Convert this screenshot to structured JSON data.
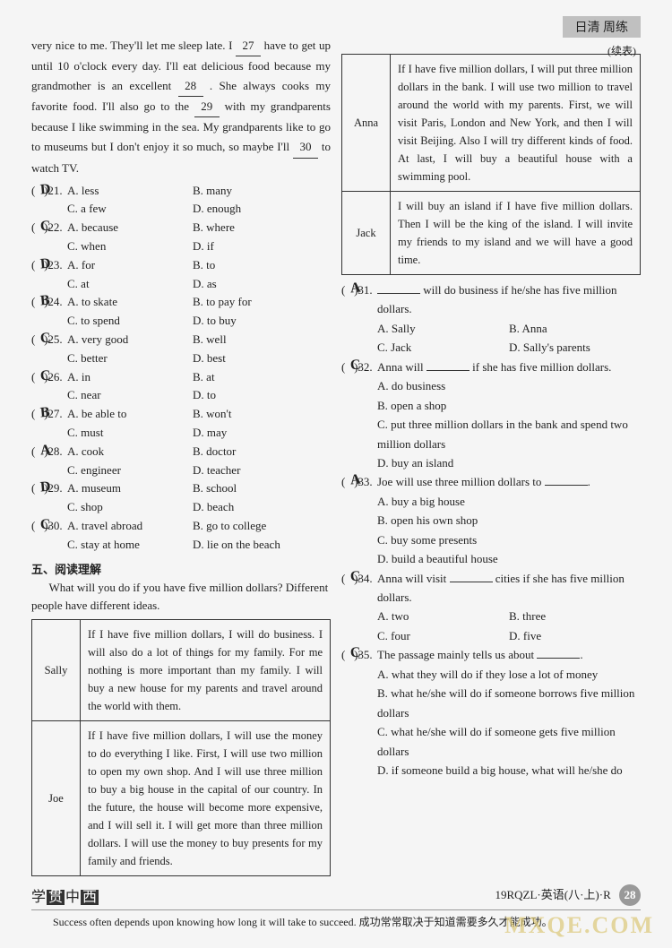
{
  "header": {
    "title": "日清 周练",
    "cont": "(续表)"
  },
  "passage": {
    "pre27": "very nice to me. They'll let me sleep late. I ",
    "b27": "27",
    "post27": " have to get up until 10 o'clock every day. I'll eat delicious food because my grandmother is an excellent ",
    "b28": "28",
    "post28": " . She always cooks my favorite food. I'll also go to the ",
    "b29": "29",
    "post29": " with my grandparents because I like swimming in the sea. My grandparents like to go to museums but I don't enjoy it so much, so maybe I'll ",
    "b30": "30",
    "post30": " to watch TV."
  },
  "cloze": [
    {
      "n": "21",
      "hw": "D",
      "a": "A. less",
      "b": "B. many",
      "c": "C. a few",
      "d": "D. enough"
    },
    {
      "n": "22",
      "hw": "C",
      "a": "A. because",
      "b": "B. where",
      "c": "C. when",
      "d": "D. if"
    },
    {
      "n": "23",
      "hw": "D",
      "a": "A. for",
      "b": "B. to",
      "c": "C. at",
      "d": "D. as"
    },
    {
      "n": "24",
      "hw": "B",
      "a": "A. to skate",
      "b": "B. to pay for",
      "c": "C. to spend",
      "d": "D. to buy"
    },
    {
      "n": "25",
      "hw": "C",
      "a": "A. very good",
      "b": "B. well",
      "c": "C. better",
      "d": "D. best"
    },
    {
      "n": "26",
      "hw": "C",
      "a": "A. in",
      "b": "B. at",
      "c": "C. near",
      "d": "D. to"
    },
    {
      "n": "27",
      "hw": "B",
      "a": "A. be able to",
      "b": "B. won't",
      "c": "C. must",
      "d": "D. may"
    },
    {
      "n": "28",
      "hw": "A",
      "a": "A. cook",
      "b": "B. doctor",
      "c": "C. engineer",
      "d": "D. teacher"
    },
    {
      "n": "29",
      "hw": "D",
      "a": "A. museum",
      "b": "B. school",
      "c": "C. shop",
      "d": "D. beach"
    },
    {
      "n": "30",
      "hw": "C",
      "a": "A. travel abroad",
      "b": "B. go to college",
      "c": "C. stay at home",
      "d": "D. lie on the beach"
    }
  ],
  "section5": {
    "title": "五、阅读理解",
    "intro": "What will you do if you have five million dollars? Different people have different ideas."
  },
  "table1": [
    {
      "name": "Sally",
      "text": "If I have five million dollars, I will do business. I will also do a lot of things for my family. For me nothing is more important than my family. I will buy a new house for my parents and travel around the world with them."
    },
    {
      "name": "Joe",
      "text": "If I have five million dollars, I will use the money to do everything I like. First, I will use two million to open my own shop. And I will use three million to buy a big house in the capital of our country. In the future, the house will become more expensive, and I will sell it. I will get more than three million dollars. I will use the money to buy presents for my family and friends."
    }
  ],
  "table2": [
    {
      "name": "Anna",
      "text": "If I have five million dollars, I will put three million dollars in the bank. I will use two million to travel around the world with my parents. First, we will visit Paris, London and New York, and then I will visit Beijing. Also I will try different kinds of food. At last, I will buy a beautiful house with a swimming pool."
    },
    {
      "name": "Jack",
      "text": "I will buy an island if I have five million dollars. Then I will be the king of the island. I will invite my friends to my island and we will have a good time."
    }
  ],
  "questions": [
    {
      "n": "31",
      "hw": "A",
      "stem_a": "",
      "blank": true,
      "stem_b": " will do business if he/she has five million dollars.",
      "opts": [
        [
          "A. Sally",
          "B. Anna"
        ],
        [
          "C. Jack",
          "D. Sally's parents"
        ]
      ]
    },
    {
      "n": "32",
      "hw": "C",
      "stem_a": "Anna will ",
      "blank": true,
      "stem_b": " if she has five million dollars.",
      "long_opts": [
        "A. do business",
        "B. open a shop",
        "C. put three million dollars in the bank and spend two million dollars",
        "D. buy an island"
      ]
    },
    {
      "n": "33",
      "hw": "A",
      "stem_a": "Joe will use three million dollars to ",
      "blank": true,
      "stem_b": ".",
      "long_opts": [
        "A. buy a big house",
        "B. open his own shop",
        "C. buy some presents",
        "D. build a beautiful house"
      ]
    },
    {
      "n": "34",
      "hw": "C",
      "stem_a": "Anna will visit ",
      "blank": true,
      "stem_b": " cities if she has five million dollars.",
      "opts": [
        [
          "A. two",
          "B. three"
        ],
        [
          "C. four",
          "D. five"
        ]
      ]
    },
    {
      "n": "35",
      "hw": "C",
      "stem_a": "The passage mainly tells us about ",
      "blank": true,
      "stem_b": ".",
      "long_opts": [
        "A. what they will do if they lose a lot of money",
        "B. what he/she will do if someone borrows five million dollars",
        "C. what he/she will do if someone gets five million dollars",
        "D. if someone build a big house, what will he/she do"
      ]
    }
  ],
  "footer": {
    "logo_pre": "学",
    "logo_b1": "贯",
    "logo_mid": "中",
    "logo_b2": "西",
    "code": "19RQZL·英语(八·上)·R",
    "page": "28",
    "quote": "Success often depends upon knowing how long it will take to succeed. 成功常常取决于知道需要多久才能成功。"
  },
  "watermark": "MXQE.COM"
}
